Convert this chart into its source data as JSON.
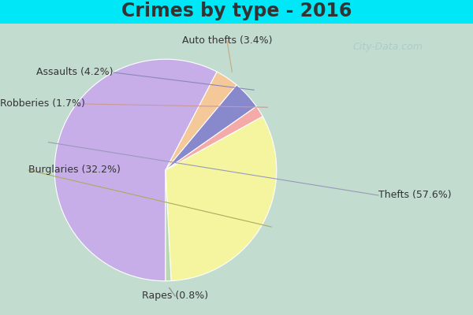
{
  "title": "Crimes by type - 2016",
  "values_order": [
    57.6,
    3.4,
    4.2,
    1.7,
    32.2,
    0.8
  ],
  "colors_order": [
    "#c8aee8",
    "#f5c89a",
    "#8888cc",
    "#f5aaaa",
    "#f5f5a0",
    "#b8d8b0"
  ],
  "background_top": "#00e8f8",
  "background_main": "#c2ddd0",
  "title_fontsize": 17,
  "title_color": "#333333",
  "watermark": "City-Data.com",
  "label_fontsize": 9,
  "label_color": "#333333"
}
